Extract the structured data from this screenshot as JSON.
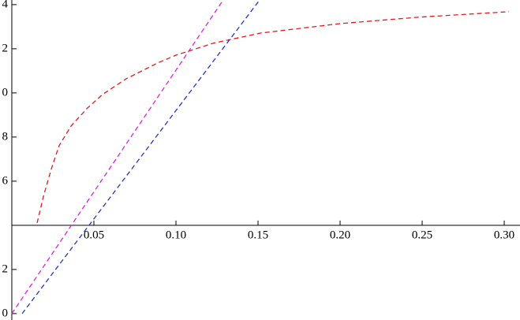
{
  "chart_data": {
    "type": "line",
    "xlim": [
      -0.0072,
      0.3096
    ],
    "ylim": [
      -0.29,
      14.21
    ],
    "xticks": [
      0.05,
      {
        "value": 0.1,
        "label": "0.10"
      },
      0.15,
      {
        "value": 0.2,
        "label": "0.20"
      },
      0.25,
      {
        "value": 0.3,
        "label": "0.30"
      }
    ],
    "yticks": [
      0,
      2,
      6,
      8,
      {
        "value": 10,
        "label": "0"
      },
      {
        "value": 12,
        "label": "2"
      },
      {
        "value": 14,
        "label": "4"
      }
    ],
    "axis_crossing": [
      0,
      4
    ],
    "dashed": true,
    "series": [
      {
        "color": "#e31a1c",
        "x": [
          0.0154,
          0.0192,
          0.024,
          0.0288,
          0.0361,
          0.0457,
          0.0553,
          0.0697,
          0.0889,
          0.1,
          0.1226,
          0.1514,
          0.2,
          0.2476,
          0.3029
        ],
        "values": [
          4.11,
          5.29,
          6.54,
          7.61,
          8.5,
          9.29,
          9.93,
          10.64,
          11.36,
          11.71,
          12.25,
          12.71,
          13.14,
          13.43,
          13.68
        ]
      },
      {
        "color": "#e020e0",
        "x": [
          0,
          0.1288
        ],
        "values": [
          0,
          14.21
        ]
      },
      {
        "color": "#2233cc",
        "x": [
          0.0063,
          0.151
        ],
        "values": [
          0,
          14.21
        ]
      }
    ]
  }
}
